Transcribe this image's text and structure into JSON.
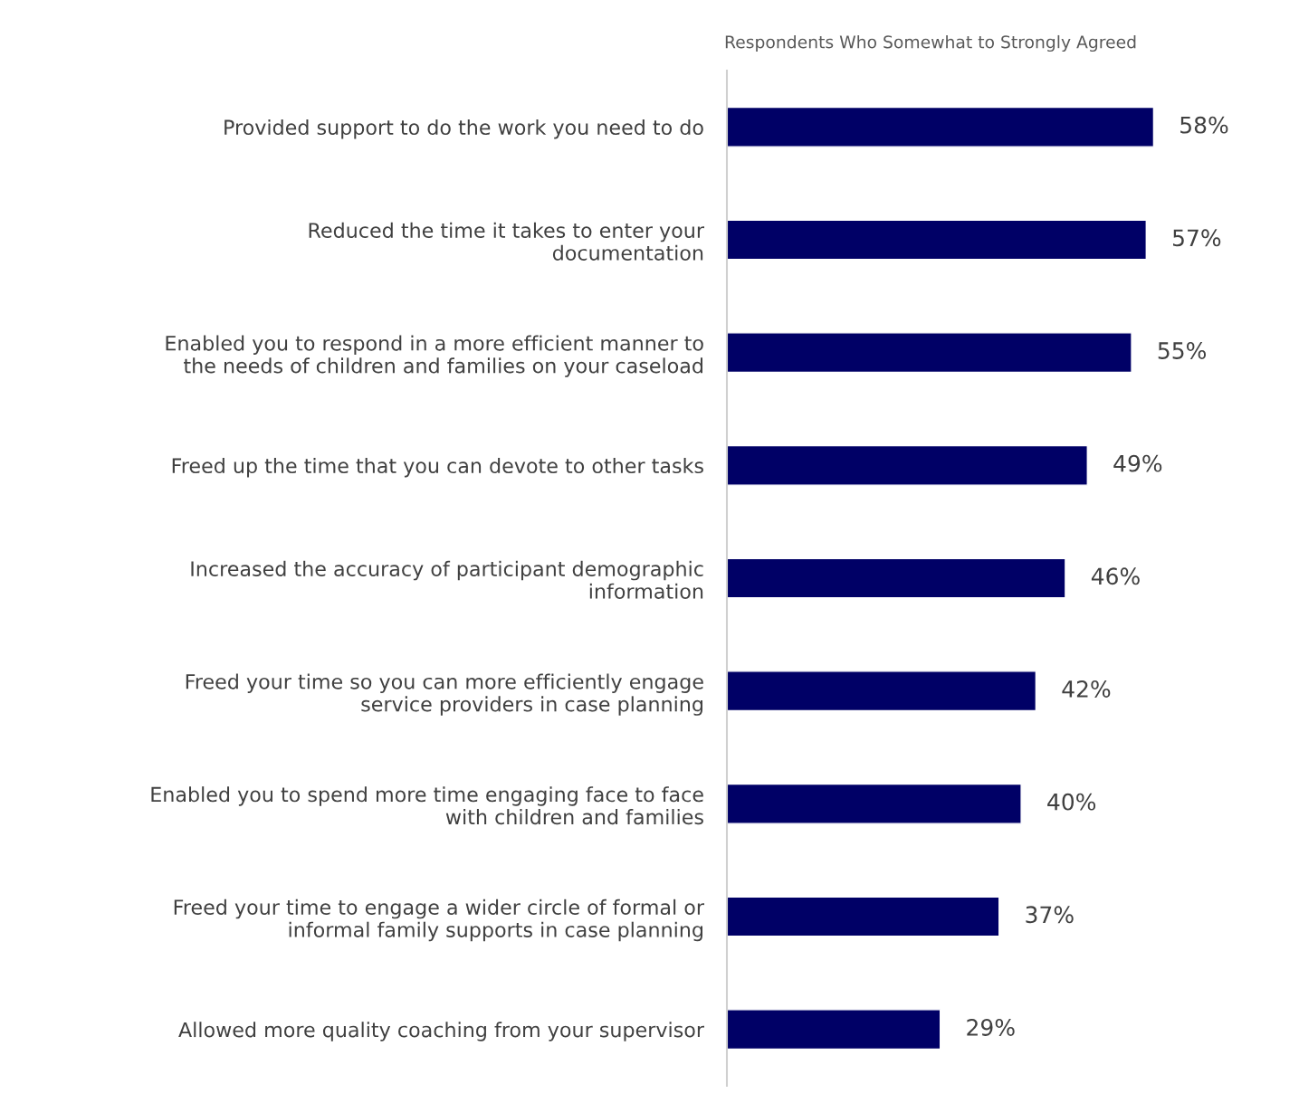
{
  "chart_data": {
    "type": "bar",
    "orientation": "horizontal",
    "title": "Respondents Who Somewhat to Strongly Agreed",
    "categories": [
      "Provided support to do the work you need to do",
      "Reduced the time it takes to enter your\ndocumentation",
      "Enabled you to respond in a more efficient manner to\nthe needs of children and families on your caseload",
      "Freed up the time that you can devote to other tasks",
      "Increased the accuracy of participant demographic\ninformation",
      "Freed your time so you can more efficiently engage\nservice providers in case planning",
      "Enabled you to spend more time engaging face to face\nwith children and families",
      "Freed your time to engage a wider circle of formal or\ninformal family supports in case planning",
      "Allowed more quality coaching from your supervisor"
    ],
    "values": [
      58,
      57,
      55,
      49,
      46,
      42,
      40,
      37,
      29
    ],
    "value_labels": [
      "58%",
      "57%",
      "55%",
      "49%",
      "46%",
      "42%",
      "40%",
      "37%",
      "29%"
    ],
    "color": "#000066",
    "grid": false,
    "legend": false
  }
}
